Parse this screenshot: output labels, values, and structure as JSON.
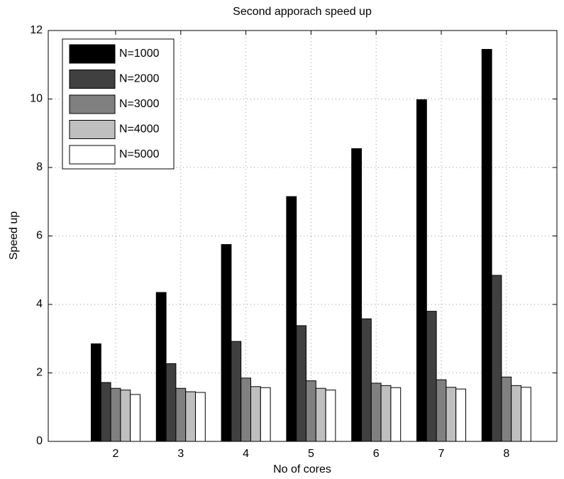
{
  "chart_data": {
    "type": "bar",
    "title": "Second apporach speed up",
    "x_label": "No of cores",
    "y_label": "Speed up",
    "categories": [
      "2",
      "3",
      "4",
      "5",
      "6",
      "7",
      "8"
    ],
    "series": [
      {
        "name": "N=1000",
        "color": "#000000",
        "values": [
          2.85,
          4.35,
          5.75,
          7.15,
          8.55,
          9.98,
          11.45
        ]
      },
      {
        "name": "N=2000",
        "color": "#404040",
        "values": [
          1.72,
          2.27,
          2.92,
          3.38,
          3.58,
          3.8,
          4.85
        ]
      },
      {
        "name": "N=3000",
        "color": "#808080",
        "values": [
          1.55,
          1.55,
          1.85,
          1.77,
          1.7,
          1.8,
          1.88
        ]
      },
      {
        "name": "N=4000",
        "color": "#bfbfbf",
        "values": [
          1.5,
          1.45,
          1.6,
          1.55,
          1.63,
          1.58,
          1.63
        ]
      },
      {
        "name": "N=5000",
        "color": "#ffffff",
        "values": [
          1.37,
          1.43,
          1.57,
          1.5,
          1.57,
          1.53,
          1.58
        ]
      }
    ],
    "ylim": [
      0,
      12
    ],
    "yticks": [
      0,
      2,
      4,
      6,
      8,
      10,
      12
    ],
    "grid": true,
    "legend": "northwest"
  }
}
